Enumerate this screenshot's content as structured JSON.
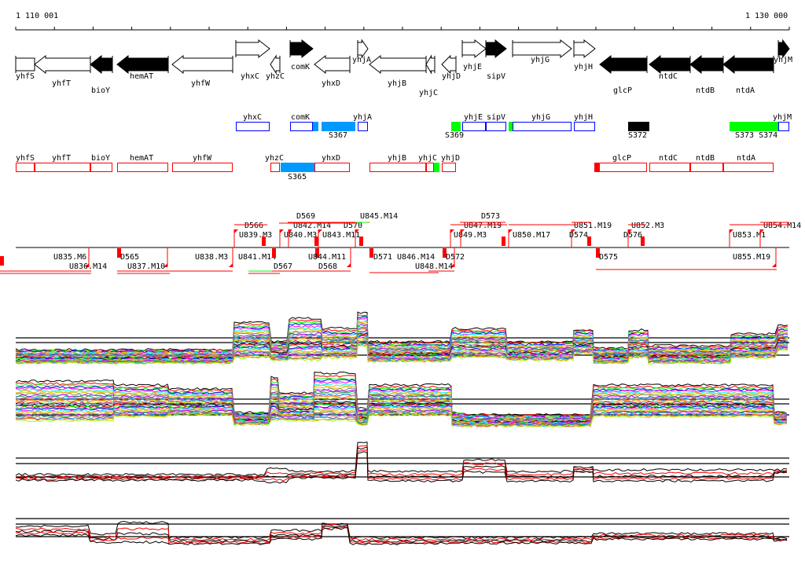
{
  "ruler": {
    "start_label": "1 110 001",
    "end_label": "1 130 000"
  },
  "colors": {
    "blue": "#0000ff",
    "red": "#ff0000",
    "green": "#00ff00",
    "cyan": "#0099ff",
    "black": "#000000"
  },
  "genes": [
    {
      "label": "yhfS",
      "strand": "none",
      "fill": "white"
    },
    {
      "label": "yhfT",
      "strand": "-",
      "fill": "white"
    },
    {
      "label": "bioY",
      "strand": "-",
      "fill": "black"
    },
    {
      "label": "hemAT",
      "strand": "-",
      "fill": "black"
    },
    {
      "label": "yhfW",
      "strand": "-",
      "fill": "white"
    },
    {
      "label": "yhxC",
      "strand": "+",
      "fill": "white"
    },
    {
      "label": "yhzC",
      "strand": "-",
      "fill": "white"
    },
    {
      "label": "comK",
      "strand": "+",
      "fill": "black"
    },
    {
      "label": "yhxD",
      "strand": "-",
      "fill": "white"
    },
    {
      "label": "yhjA",
      "strand": "+",
      "fill": "white"
    },
    {
      "label": "yhjB",
      "strand": "-",
      "fill": "white"
    },
    {
      "label": "yhjC",
      "strand": "-",
      "fill": "white"
    },
    {
      "label": "yhjD",
      "strand": "-",
      "fill": "white"
    },
    {
      "label": "yhjE",
      "strand": "+",
      "fill": "white"
    },
    {
      "label": "sipV",
      "strand": "+",
      "fill": "black"
    },
    {
      "label": "yhjG",
      "strand": "+",
      "fill": "white"
    },
    {
      "label": "yhjH",
      "strand": "+",
      "fill": "white"
    },
    {
      "label": "glcP",
      "strand": "-",
      "fill": "black"
    },
    {
      "label": "ntdC",
      "strand": "-",
      "fill": "black"
    },
    {
      "label": "ntdB",
      "strand": "-",
      "fill": "black"
    },
    {
      "label": "ntdA",
      "strand": "-",
      "fill": "black"
    },
    {
      "label": "yhjM",
      "strand": "+",
      "fill": "black"
    }
  ],
  "forward_track": [
    {
      "label": "yhxC",
      "kind": "gene"
    },
    {
      "label": "comK",
      "kind": "gene"
    },
    {
      "label": "",
      "kind": "cyan"
    },
    {
      "label": "S367",
      "kind": "cyan"
    },
    {
      "label": "yhjA",
      "kind": "gene"
    },
    {
      "label": "S369",
      "kind": "green"
    },
    {
      "label": "yhjE",
      "kind": "gene"
    },
    {
      "label": "sipV",
      "kind": "gene"
    },
    {
      "label": "",
      "kind": "green"
    },
    {
      "label": "yhjG",
      "kind": "gene"
    },
    {
      "label": "yhjH",
      "kind": "gene"
    },
    {
      "label": "S372",
      "kind": "black"
    },
    {
      "label": "S373 S374",
      "kind": "green"
    },
    {
      "label": "yhjM",
      "kind": "gene"
    }
  ],
  "reverse_track": [
    {
      "label": "yhfS",
      "kind": "gene"
    },
    {
      "label": "yhfT",
      "kind": "gene"
    },
    {
      "label": "bioY",
      "kind": "gene"
    },
    {
      "label": "hemAT",
      "kind": "gene"
    },
    {
      "label": "yhfW",
      "kind": "gene"
    },
    {
      "label": "yhzC",
      "kind": "gene"
    },
    {
      "label": "S365",
      "kind": "cyan"
    },
    {
      "label": "yhxD",
      "kind": "gene"
    },
    {
      "label": "yhjB",
      "kind": "gene"
    },
    {
      "label": "yhjC",
      "kind": "gene"
    },
    {
      "label": "",
      "kind": "green"
    },
    {
      "label": "yhjD",
      "kind": "gene"
    },
    {
      "label": "glcP",
      "kind": "gene"
    },
    {
      "label": "",
      "kind": "red"
    },
    {
      "label": "ntdC",
      "kind": "gene"
    },
    {
      "label": "ntdB",
      "kind": "gene"
    },
    {
      "label": "ntdA",
      "kind": "gene"
    }
  ],
  "segment_labels": [
    "U839.M3",
    "D566",
    "U840.M3",
    "U842.M14",
    "D569",
    "U843.M11",
    "D570",
    "U845.M14",
    "U849.M3",
    "U847.M19",
    "D573",
    "U850.M17",
    "U851.M19",
    "D574",
    "U852.M3",
    "D576",
    "U853.M1",
    "U854.M14",
    "U835.M6",
    "U836.M14",
    "D565",
    "U837.M10",
    "U838.M3",
    "U841.M14",
    "D567",
    "D568",
    "U844.M11",
    "D571",
    "U846.M14",
    "U848.M14",
    "D572",
    "D575",
    "U855.M19"
  ]
}
